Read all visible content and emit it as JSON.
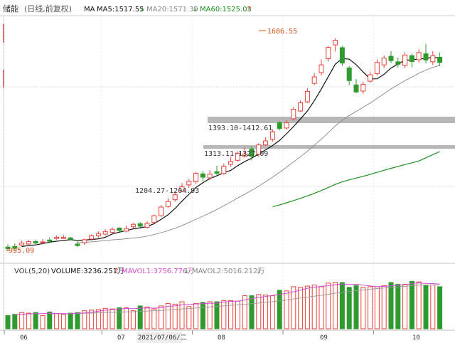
{
  "colors": {
    "up": "#e8403a",
    "down": "#2f9a2f",
    "ma5": "#111111",
    "ma20": "#888888",
    "ma60": "#1e8f1e",
    "mavol1": "#d04fd0",
    "mavol2": "#999999",
    "band": "#b7b7b7",
    "grid": "#cfcfcf",
    "annot": "#d9541e"
  },
  "header": {
    "stock": "储能",
    "mode": "(日线,前复权)",
    "ma_label": "MA",
    "ma5": "MA5:1517.55",
    "ma5_arrow": "↓",
    "ma20": "MA20:1571.39",
    "ma20_arrow": "↓",
    "ma60": "MA60:1525.03",
    "ma60_arrow": "↑"
  },
  "volume_header": {
    "label": "VOL(5,20)",
    "volume": "VOLUME:3236.251万",
    "volume_arrow": "↑",
    "mavol1": "MAVOL1:3756.776万",
    "mavol1_arrow": "↓",
    "mavol2": "MAVOL2:5016.212万",
    "mavol2_arrow": "↓"
  },
  "annotations": {
    "high": "1686.55",
    "low": "995.09",
    "gap1": "1393.10-1412.61",
    "gap2": "1313.11-1327.09",
    "gap3": "1204.27-1204.93"
  },
  "x_axis": {
    "labels": [
      "06",
      "07",
      "2021/07/06/二",
      "08",
      "09",
      "10"
    ]
  },
  "chart_data": {
    "type": "candlestick",
    "x_unit": "trading day index (0 = first visible bar, 62 = last)",
    "y_unit": "index points (estimated from price annotations)",
    "price_range": [
      960,
      1760
    ],
    "month_start_index": {
      "07": 14,
      "08": 27,
      "09": 40,
      "10": 53
    },
    "highlight_index": 17,
    "candles": [
      [
        1008,
        1003,
        1017,
        996,
        0,
        22
      ],
      [
        1010,
        1004,
        1020,
        997,
        0,
        24
      ],
      [
        1015,
        1021,
        1029,
        1010,
        1,
        27
      ],
      [
        1018,
        1026,
        1031,
        1014,
        1,
        26
      ],
      [
        1026,
        1021,
        1033,
        1017,
        0,
        27
      ],
      [
        1023,
        1025,
        1034,
        1017,
        1,
        22
      ],
      [
        1031,
        1027,
        1039,
        1021,
        0,
        28
      ],
      [
        1040,
        1036,
        1046,
        1032,
        1,
        25
      ],
      [
        1036,
        1040,
        1047,
        1034,
        1,
        24
      ],
      [
        1038,
        1033,
        1041,
        1030,
        0,
        26
      ],
      [
        1018,
        1013,
        1031,
        1008,
        0,
        27
      ],
      [
        1022,
        1032,
        1036,
        1015,
        1,
        30
      ],
      [
        1034,
        1045,
        1049,
        1029,
        1,
        31
      ],
      [
        1045,
        1052,
        1059,
        1039,
        1,
        32
      ],
      [
        1050,
        1058,
        1066,
        1046,
        1,
        34
      ],
      [
        1056,
        1066,
        1072,
        1052,
        1,
        33
      ],
      [
        1070,
        1062,
        1073,
        1057,
        0,
        35
      ],
      [
        1060,
        1068,
        1078,
        1056,
        1,
        35
      ],
      [
        1074,
        1082,
        1086,
        1069,
        1,
        30
      ],
      [
        1084,
        1076,
        1089,
        1072,
        0,
        38
      ],
      [
        1072,
        1085,
        1092,
        1069,
        1,
        36
      ],
      [
        1088,
        1110,
        1114,
        1085,
        1,
        33
      ],
      [
        1110,
        1138,
        1145,
        1106,
        1,
        38
      ],
      [
        1140,
        1156,
        1167,
        1136,
        1,
        42
      ],
      [
        1162,
        1178,
        1189,
        1156,
        1,
        41
      ],
      [
        1190,
        1204,
        1216,
        1186,
        1,
        45
      ],
      [
        1210,
        1222,
        1229,
        1200,
        1,
        37
      ],
      [
        1220,
        1248,
        1251,
        1213,
        1,
        42
      ],
      [
        1246,
        1235,
        1256,
        1222,
        0,
        44
      ],
      [
        1233,
        1245,
        1258,
        1226,
        1,
        45
      ],
      [
        1253,
        1248,
        1272,
        1241,
        0,
        45
      ],
      [
        1247,
        1271,
        1279,
        1243,
        1,
        47
      ],
      [
        1277,
        1286,
        1301,
        1269,
        1,
        47
      ],
      [
        1290,
        1313,
        1319,
        1286,
        1,
        46
      ],
      [
        1303,
        1311,
        1332,
        1299,
        1,
        55
      ],
      [
        1327,
        1303,
        1336,
        1290,
        0,
        55
      ],
      [
        1310,
        1340,
        1345,
        1302,
        1,
        57
      ],
      [
        1340,
        1353,
        1365,
        1337,
        1,
        56
      ],
      [
        1358,
        1383,
        1391,
        1351,
        1,
        55
      ],
      [
        1412,
        1393,
        1417,
        1388,
        0,
        64
      ],
      [
        1395,
        1412,
        1421,
        1390,
        1,
        63
      ],
      [
        1425,
        1456,
        1463,
        1420,
        1,
        70
      ],
      [
        1450,
        1477,
        1485,
        1447,
        1,
        69
      ],
      [
        1480,
        1514,
        1525,
        1476,
        1,
        71
      ],
      [
        1540,
        1561,
        1573,
        1534,
        1,
        73
      ],
      [
        1575,
        1600,
        1618,
        1566,
        1,
        70
      ],
      [
        1620,
        1657,
        1662,
        1611,
        1,
        76
      ],
      [
        1665,
        1680,
        1686.55,
        1643,
        1,
        77
      ],
      [
        1656,
        1606,
        1662,
        1597,
        0,
        77
      ],
      [
        1590,
        1549,
        1596,
        1534,
        0,
        69
      ],
      [
        1535,
        1512,
        1554,
        1508,
        0,
        72
      ],
      [
        1515,
        1537,
        1545,
        1506,
        1,
        69
      ],
      [
        1547,
        1568,
        1578,
        1542,
        1,
        70
      ],
      [
        1572,
        1608,
        1618,
        1566,
        1,
        70
      ],
      [
        1600,
        1622,
        1630,
        1590,
        1,
        72
      ],
      [
        1628,
        1614,
        1645,
        1606,
        0,
        77
      ],
      [
        1610,
        1602,
        1624,
        1591,
        0,
        74
      ],
      [
        1598,
        1632,
        1641,
        1589,
        1,
        74
      ],
      [
        1630,
        1611,
        1637,
        1593,
        0,
        79
      ],
      [
        1617,
        1640,
        1651,
        1607,
        1,
        78
      ],
      [
        1636,
        1616,
        1668,
        1605,
        0,
        72
      ],
      [
        1610,
        1630,
        1645,
        1600,
        1,
        73
      ],
      [
        1625,
        1608,
        1640,
        1596,
        0,
        70
      ]
    ],
    "legend": [
      "MA5:1517.55",
      "MA20:1571.39",
      "MA60:1525.03",
      "MAVOL1:3756.776万",
      "MAVOL2:5016.212万"
    ]
  }
}
